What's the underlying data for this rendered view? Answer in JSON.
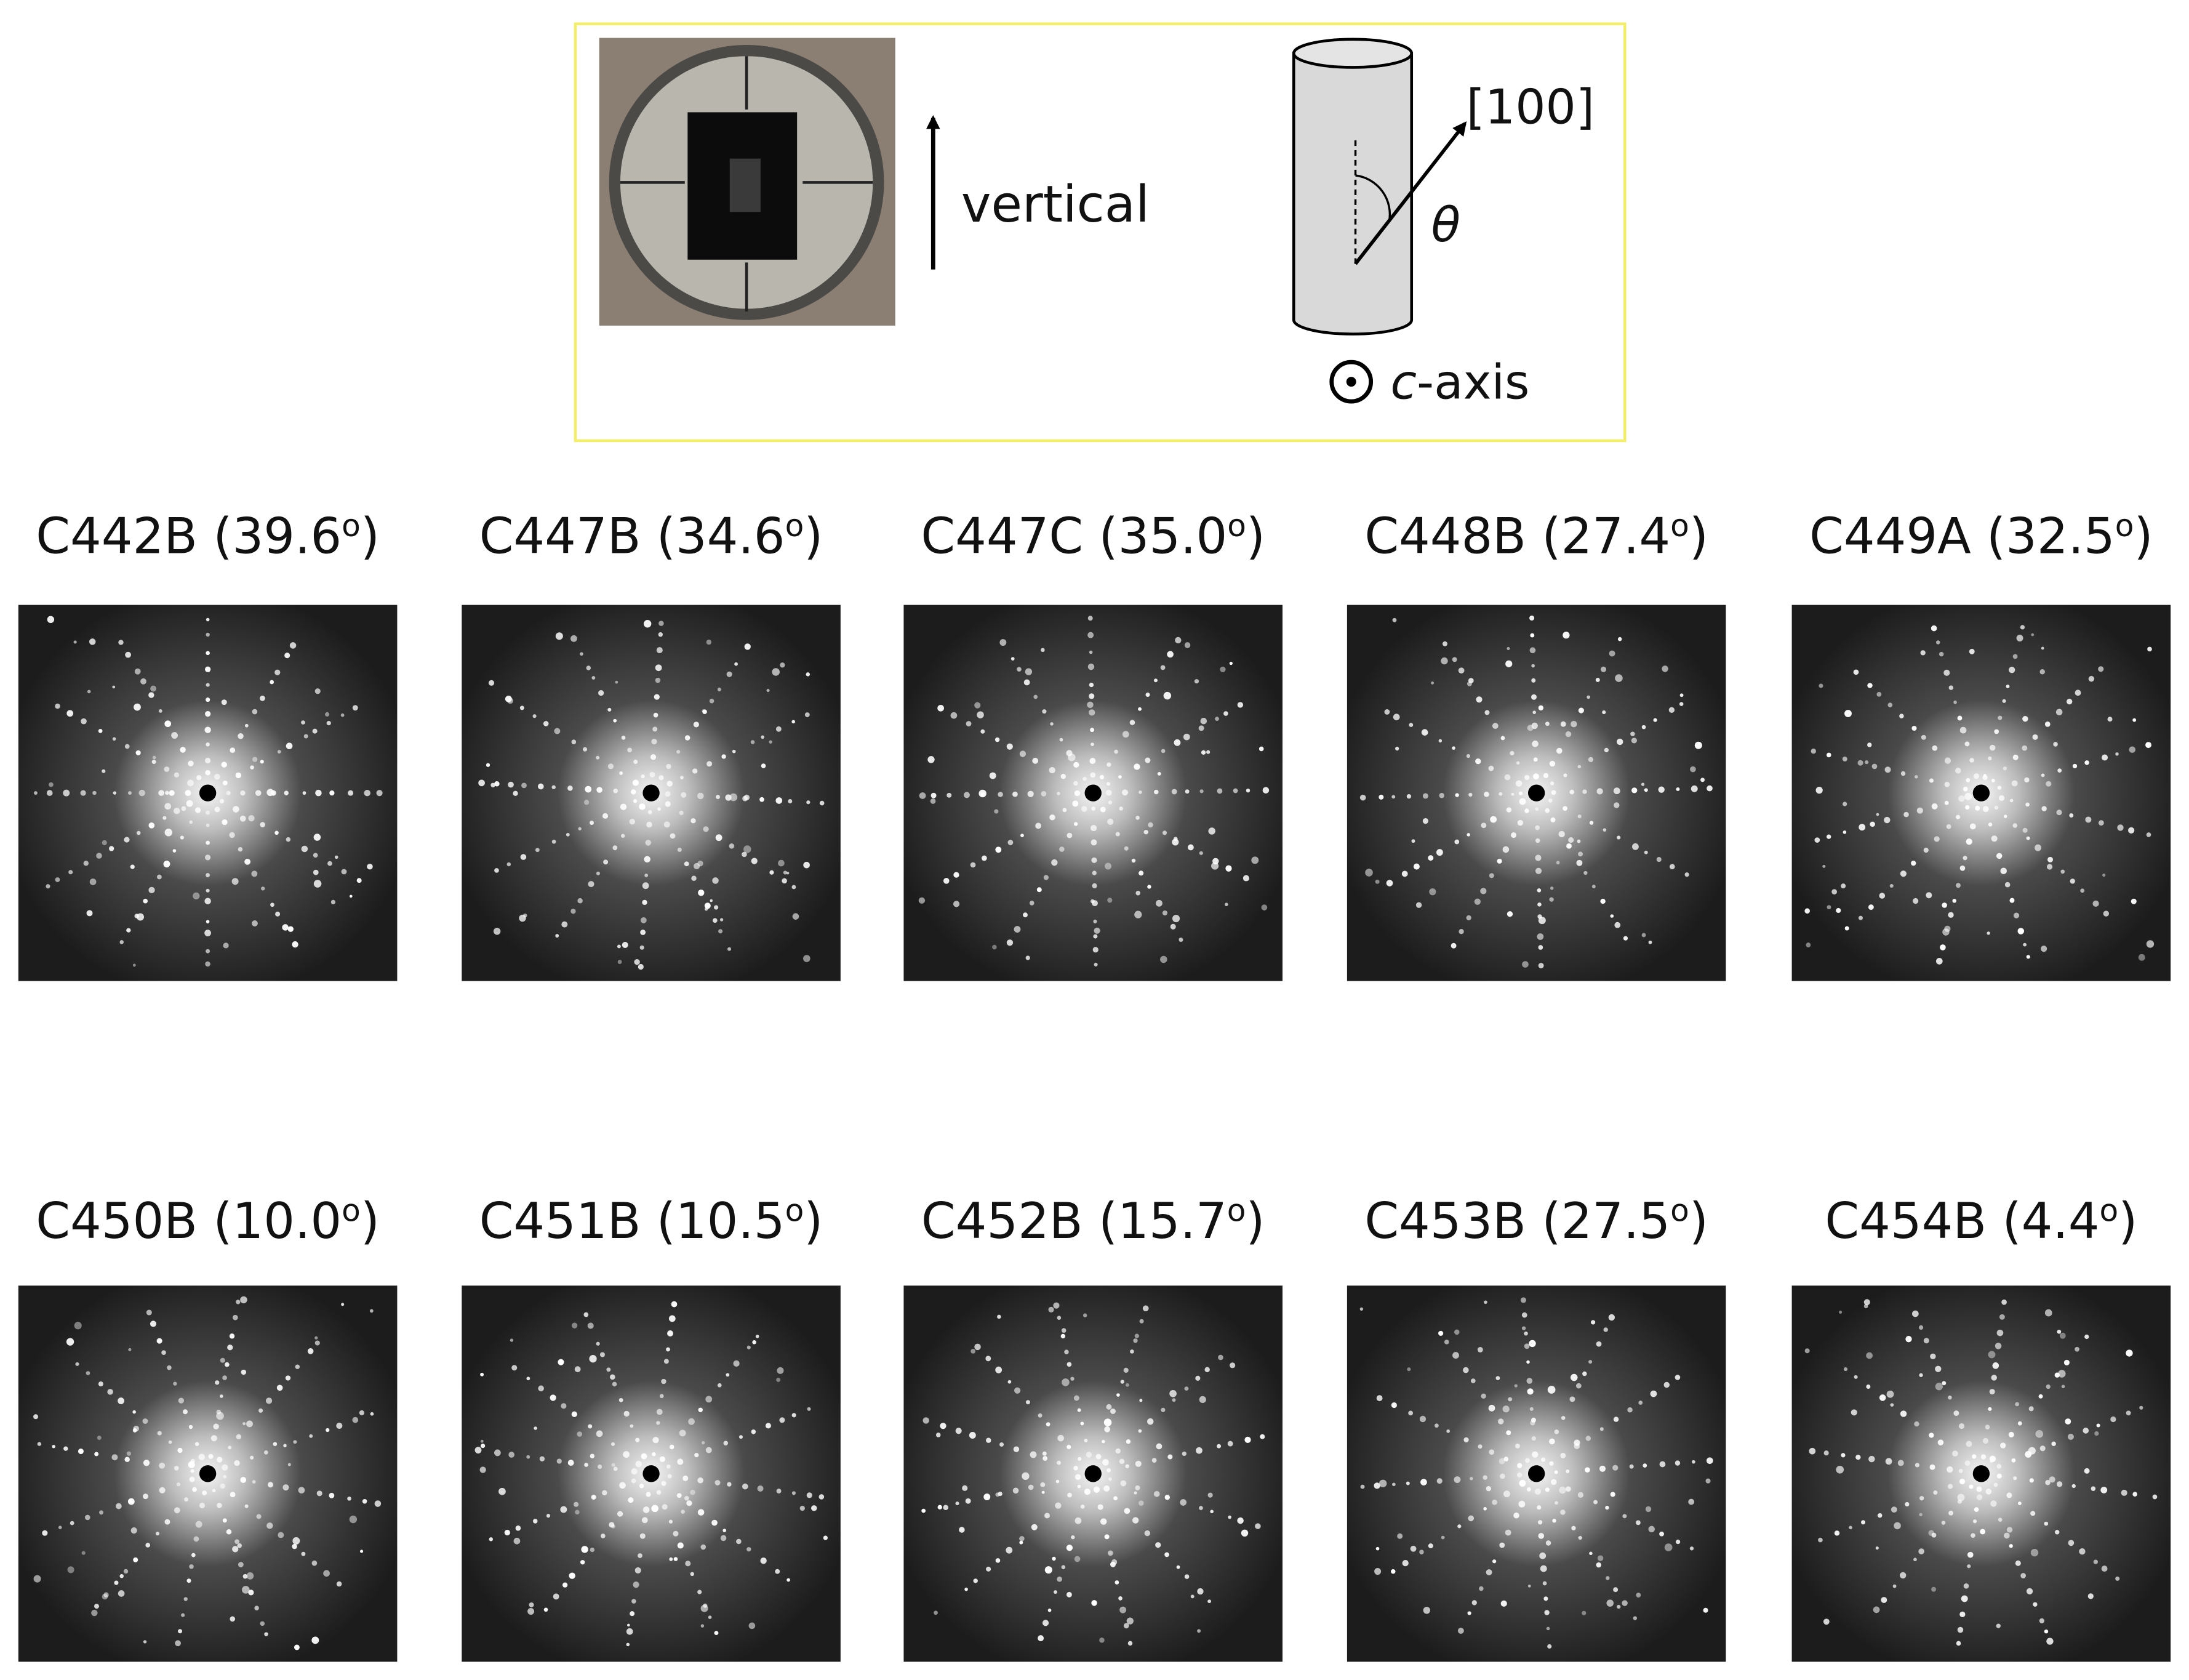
{
  "legend_box": {
    "vertical_label": "vertical",
    "direction_label": "[100]",
    "angle_symbol": "θ",
    "axis_italic": "c",
    "axis_rest": "-axis"
  },
  "panels": [
    {
      "label": "C442B (39.6",
      "sup": "o",
      "end": ")"
    },
    {
      "label": "C447B (34.6",
      "sup": "o",
      "end": ")"
    },
    {
      "label": "C447C (35.0",
      "sup": "o",
      "end": ")"
    },
    {
      "label": "C448B (27.4",
      "sup": "o",
      "end": ")"
    },
    {
      "label": "C449A (32.5",
      "sup": "o",
      "end": ")"
    },
    {
      "label": "C450B (10.0",
      "sup": "o",
      "end": ")"
    },
    {
      "label": "C451B (10.5",
      "sup": "o",
      "end": ")"
    },
    {
      "label": "C452B (15.7",
      "sup": "o",
      "end": ")"
    },
    {
      "label": "C453B (27.5",
      "sup": "o",
      "end": ")"
    },
    {
      "label": "C454B (4.4",
      "sup": "o",
      "end": ")"
    }
  ]
}
